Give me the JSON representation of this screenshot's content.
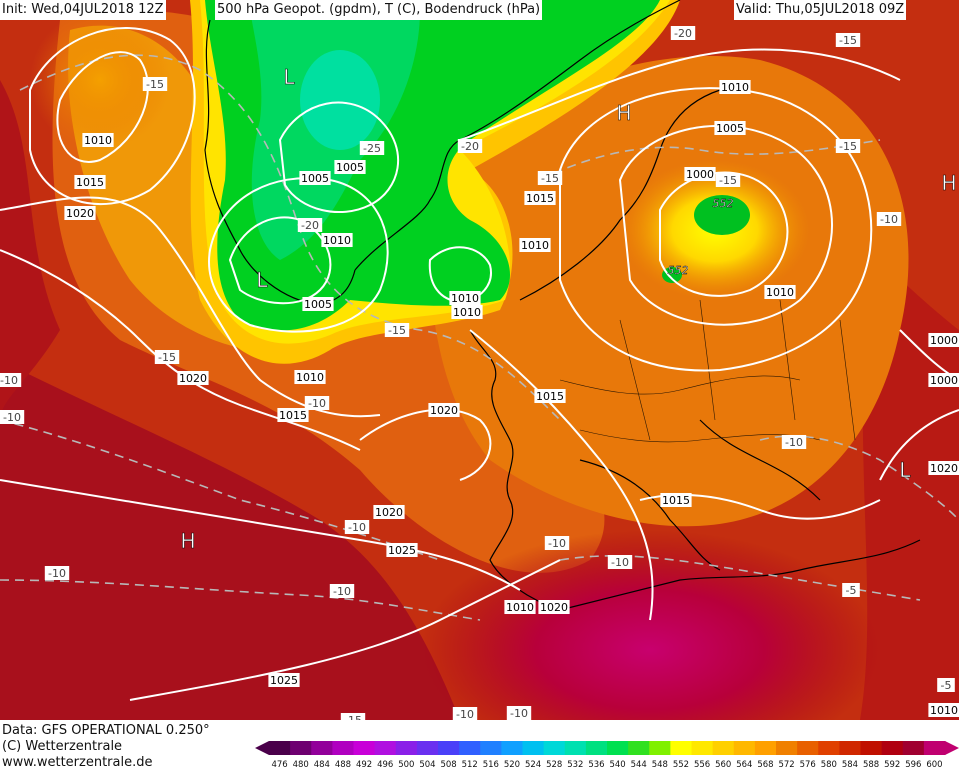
{
  "header": {
    "init": "Init: Wed,04JUL2018 12Z",
    "title": "500 hPa Geopot. (gpdm), T (C), Bodendruck (hPa)",
    "valid": "Valid: Thu,05JUL2018 09Z"
  },
  "footer": {
    "data_source": "Data: GFS OPERATIONAL 0.250°",
    "copyright": "(C) Wetterzentrale",
    "url": "www.wetterzentrale.de"
  },
  "legend": {
    "geopotential_levels": [
      "476",
      "480",
      "484",
      "488",
      "492",
      "496",
      "500",
      "504",
      "508",
      "512",
      "516",
      "520",
      "524",
      "528",
      "532",
      "536",
      "540",
      "544",
      "548",
      "552",
      "556",
      "560",
      "564",
      "568",
      "572",
      "576",
      "580",
      "584",
      "588",
      "592",
      "596",
      "600"
    ],
    "colors": [
      "#4a004a",
      "#6e0070",
      "#92009a",
      "#b000c0",
      "#c800d8",
      "#b010e0",
      "#8a20e8",
      "#6a30f0",
      "#4a40f8",
      "#3060ff",
      "#2080ff",
      "#10a0ff",
      "#00c0f0",
      "#00d8d8",
      "#00e0b0",
      "#00e080",
      "#00e050",
      "#30e020",
      "#80f000",
      "#ffff00",
      "#ffe800",
      "#ffd000",
      "#ffb800",
      "#ffa000",
      "#f08000",
      "#e86000",
      "#e04000",
      "#d02800",
      "#c01000",
      "#b00010",
      "#a00030",
      "#c00070"
    ]
  },
  "pressure_centers": [
    {
      "label": "H",
      "kind": "high"
    },
    {
      "label": "H",
      "kind": "high"
    },
    {
      "label": "H",
      "kind": "high"
    },
    {
      "label": "L",
      "kind": "low"
    },
    {
      "label": "L",
      "kind": "low"
    },
    {
      "label": "L",
      "kind": "low"
    }
  ],
  "isobar_labels": [
    "1010",
    "1015",
    "1020",
    "1005",
    "1005",
    "1010",
    "1000",
    "1010",
    "1005",
    "1010",
    "1010",
    "1000",
    "1005",
    "1010",
    "1015",
    "1010",
    "1020",
    "1020",
    "1015",
    "1015",
    "1010",
    "1000",
    "1010",
    "1015",
    "1020",
    "1025",
    "1020",
    "1025",
    "1020",
    "1010"
  ],
  "temperature_labels": [
    "-20",
    "-15",
    "-15",
    "-25",
    "-20",
    "-20",
    "-15",
    "-15",
    "-15",
    "-15",
    "-10",
    "-15",
    "-10",
    "-10",
    "-10",
    "-10",
    "-10",
    "-10",
    "-10",
    "-10",
    "-5",
    "-10",
    "-5",
    "-10",
    "-15",
    "-10"
  ],
  "geopotential_labels": [
    "552",
    "552"
  ]
}
